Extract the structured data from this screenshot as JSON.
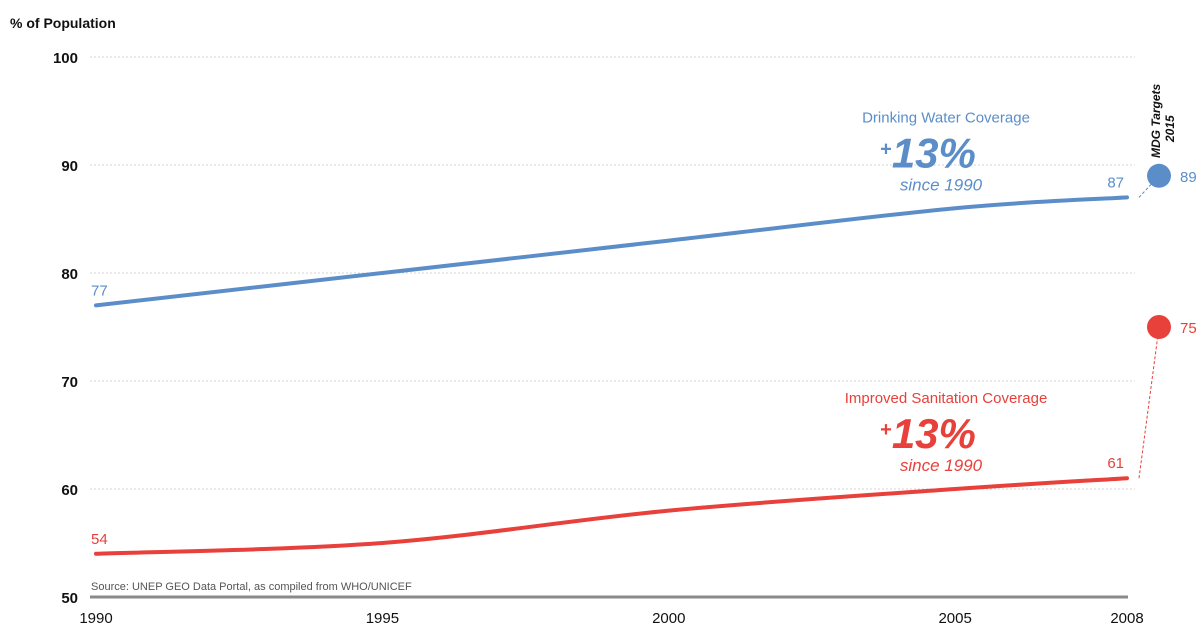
{
  "chart_data": {
    "type": "line",
    "ylabel": "% of Population",
    "ylim": [
      50,
      100
    ],
    "yticks": [
      "50",
      "60",
      "70",
      "80",
      "90",
      "100"
    ],
    "xticks": [
      "1990",
      "1995",
      "2000",
      "2005",
      "2008"
    ],
    "grid": true,
    "source": "Source: UNEP GEO Data Portal, as compiled from WHO/UNICEF",
    "target_label": [
      "MDG Targets",
      "2015"
    ],
    "series": [
      {
        "name": "Drinking Water Coverage",
        "color": "#5b8ec9",
        "x": [
          1990,
          1995,
          2000,
          2005,
          2008
        ],
        "y": [
          77,
          80,
          83,
          86,
          87
        ],
        "start_label": "77",
        "end_label": "87",
        "change": "13%",
        "change_prefix": "+",
        "change_note": "since 1990",
        "target": 89,
        "target_label": "89"
      },
      {
        "name": "Improved Sanitation Coverage",
        "color": "#e8403a",
        "x": [
          1990,
          1995,
          2000,
          2005,
          2008
        ],
        "y": [
          54,
          55,
          58,
          60,
          61
        ],
        "start_label": "54",
        "end_label": "61",
        "change": "13%",
        "change_prefix": "+",
        "change_note": "since 1990",
        "target": 75,
        "target_label": "75"
      }
    ]
  }
}
